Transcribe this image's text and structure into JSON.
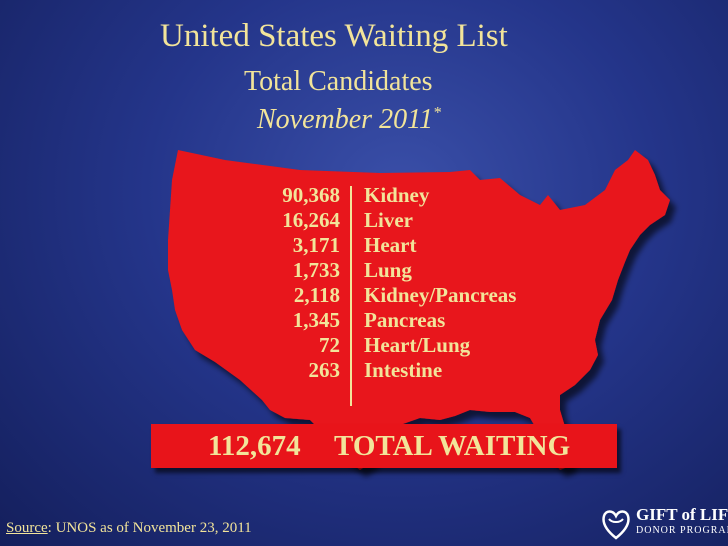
{
  "header": {
    "title": "United States Waiting List",
    "subtitle": "Total Candidates",
    "date": "November 2011",
    "date_mark": "*"
  },
  "organs": [
    {
      "count": "90,368",
      "name": "Kidney"
    },
    {
      "count": "16,264",
      "name": "Liver"
    },
    {
      "count": "3,171",
      "name": "Heart"
    },
    {
      "count": "1,733",
      "name": "Lung"
    },
    {
      "count": "2,118",
      "name": "Kidney/Pancreas"
    },
    {
      "count": "1,345",
      "name": "Pancreas"
    },
    {
      "count": "72",
      "name": "Heart/Lung"
    },
    {
      "count": "263",
      "name": "Intestine"
    }
  ],
  "total": {
    "count": "112,674",
    "label": "TOTAL WAITING"
  },
  "source": {
    "prefix": "Source",
    "text": ": UNOS as of  November 23, 2011"
  },
  "logo": {
    "line1": "GIFT of LIFE",
    "line2": "DONOR PROGRAM"
  },
  "colors": {
    "map": "#e8141a",
    "text": "#f2e49a",
    "background": "#24358a"
  }
}
